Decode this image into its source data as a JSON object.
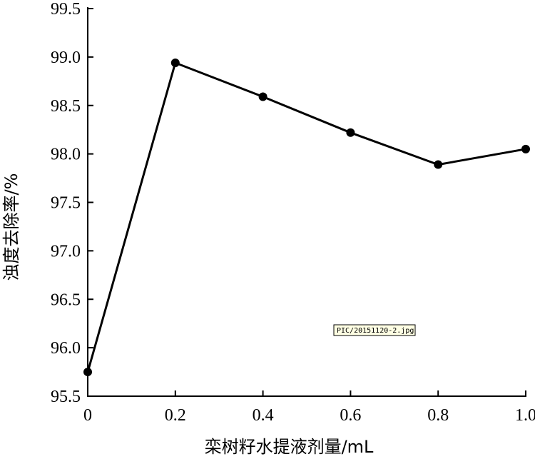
{
  "chart_data": {
    "type": "line",
    "xlabel": "栾树籽水提液剂量/mL",
    "ylabel": "浊度去除率/%",
    "x": [
      0,
      0.2,
      0.4,
      0.6,
      0.8,
      1.0
    ],
    "x_tick_labels": [
      "0",
      "0.2",
      "0.4",
      "0.6",
      "0.8",
      "1.0"
    ],
    "xlim": [
      0,
      1.0
    ],
    "y_ticks": [
      95.5,
      96.0,
      96.5,
      97.0,
      97.5,
      98.0,
      98.5,
      99.0,
      99.5
    ],
    "y_tick_labels": [
      "95.5",
      "96.0",
      "96.5",
      "97.0",
      "97.5",
      "98.0",
      "98.5",
      "99.0",
      "99.5"
    ],
    "ylim": [
      95.5,
      99.5
    ],
    "series": [
      {
        "values": [
          95.75,
          98.94,
          98.59,
          98.22,
          97.89,
          98.05
        ]
      }
    ],
    "grid": false,
    "line_color": "#000000",
    "marker": "filled-circle"
  },
  "watermark": "PIC/20151120-2.jpg"
}
